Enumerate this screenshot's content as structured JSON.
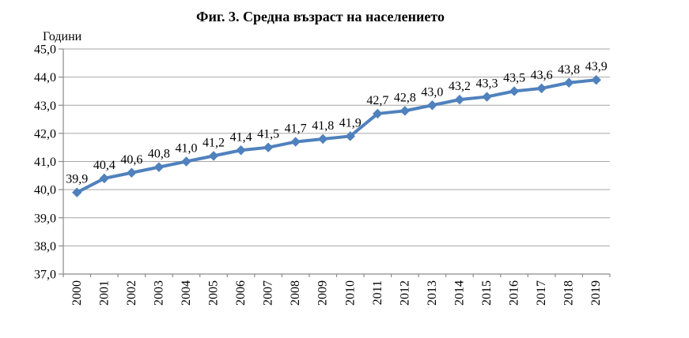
{
  "chart_data": {
    "type": "line",
    "title": "Фиг. 3. Средна възраст на населението",
    "xlabel": "",
    "ylabel": "Години",
    "categories": [
      "2000",
      "2001",
      "2002",
      "2003",
      "2004",
      "2005",
      "2006",
      "2007",
      "2008",
      "2009",
      "2010",
      "2011",
      "2012",
      "2013",
      "2014",
      "2015",
      "2016",
      "2017",
      "2018",
      "2019"
    ],
    "values": [
      39.9,
      40.4,
      40.6,
      40.8,
      41.0,
      41.2,
      41.4,
      41.5,
      41.7,
      41.8,
      41.9,
      42.7,
      42.8,
      43.0,
      43.2,
      43.3,
      43.5,
      43.6,
      43.8,
      43.9
    ],
    "point_labels": [
      "39,9",
      "40,4",
      "40,6",
      "40,8",
      "41,0",
      "41,2",
      "41,4",
      "41,5",
      "41,7",
      "41,8",
      "41,9",
      "42,7",
      "42,8",
      "43,0",
      "43,2",
      "43,3",
      "43,5",
      "43,6",
      "43,8",
      "43,9"
    ],
    "ylim": [
      37,
      45
    ],
    "ytick_step": 1,
    "ytick_labels": [
      "37,0",
      "38,0",
      "39,0",
      "40,0",
      "41,0",
      "42,0",
      "43,0",
      "44,0",
      "45,0"
    ],
    "grid": "horizontal-only",
    "legend": "none",
    "marker": "diamond",
    "colors": {
      "line": "#4F81BD",
      "marker": "#4F81BD",
      "grid": "#A6A6A6",
      "axis": "#8A8A8A",
      "text": "#000000",
      "background": "#FFFFFF"
    }
  }
}
